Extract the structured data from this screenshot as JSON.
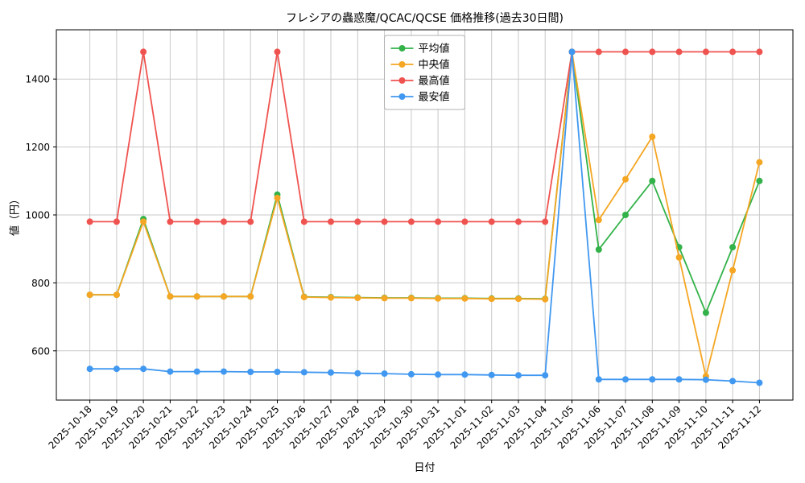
{
  "chart_data": {
    "type": "line",
    "title": "フレシアの蟲惑魔/QCAC/QCSE 価格推移(過去30日間)",
    "xlabel": "日付",
    "ylabel": "値（円）",
    "grid": true,
    "legend_position": "upper center",
    "background": "#ffffff",
    "ylim": [
      455,
      1545
    ],
    "yticks": [
      600,
      800,
      1000,
      1200,
      1400
    ],
    "categories": [
      "2025-10-18",
      "2025-10-19",
      "2025-10-20",
      "2025-10-21",
      "2025-10-22",
      "2025-10-23",
      "2025-10-24",
      "2025-10-25",
      "2025-10-26",
      "2025-10-27",
      "2025-10-28",
      "2025-10-29",
      "2025-10-30",
      "2025-10-31",
      "2025-11-01",
      "2025-11-02",
      "2025-11-03",
      "2025-11-04",
      "2025-11-05",
      "2025-11-06",
      "2025-11-07",
      "2025-11-08",
      "2025-11-09",
      "2025-11-10",
      "2025-11-11",
      "2025-11-12"
    ],
    "series": [
      {
        "id": "average",
        "name": "平均値",
        "color": "#33b249",
        "values": [
          765,
          765,
          988,
          760,
          760,
          760,
          760,
          1060,
          759,
          758,
          757,
          756,
          756,
          755,
          755,
          754,
          754,
          753,
          1480,
          898,
          1000,
          1100,
          905,
          712,
          905,
          1100
        ]
      },
      {
        "id": "median",
        "name": "中央値",
        "color": "#f5a623",
        "values": [
          765,
          765,
          980,
          760,
          760,
          760,
          760,
          1050,
          758,
          757,
          756,
          755,
          755,
          754,
          754,
          753,
          753,
          752,
          1480,
          985,
          1105,
          1230,
          875,
          525,
          837,
          1155
        ]
      },
      {
        "id": "max",
        "name": "最高値",
        "color": "#ef5350",
        "values": [
          980,
          980,
          1480,
          980,
          980,
          980,
          980,
          1480,
          980,
          980,
          980,
          980,
          980,
          980,
          980,
          980,
          980,
          980,
          1480,
          1480,
          1480,
          1480,
          1480,
          1480,
          1480,
          1480
        ]
      },
      {
        "id": "min",
        "name": "最安値",
        "color": "#4198f0",
        "values": [
          547,
          547,
          547,
          539,
          539,
          539,
          538,
          538,
          537,
          536,
          534,
          533,
          531,
          530,
          530,
          529,
          528,
          528,
          1480,
          516,
          516,
          516,
          516,
          515,
          511,
          506
        ]
      }
    ]
  }
}
